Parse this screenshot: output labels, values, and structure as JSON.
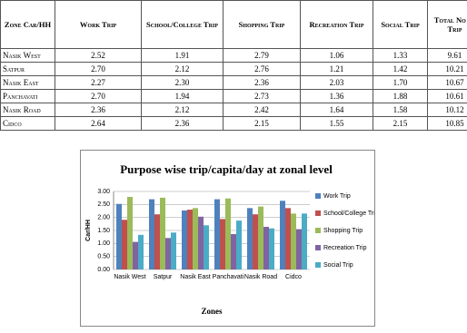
{
  "table": {
    "header": [
      "Zone Car/HH",
      "Work Trip",
      "School/College Trip",
      "Shopping Trip",
      "Recreation Trip",
      "Social Trip",
      "Total No of Trip"
    ],
    "rows": [
      [
        "Nasik West",
        "2.52",
        "1.91",
        "2.79",
        "1.06",
        "1.33",
        "9.61"
      ],
      [
        "Satpur",
        "2.70",
        "2.12",
        "2.76",
        "1.21",
        "1.42",
        "10.21"
      ],
      [
        "Nasik East",
        "2.27",
        "2.30",
        "2.36",
        "2.03",
        "1.70",
        "10.67"
      ],
      [
        "Panchavati",
        "2.70",
        "1.94",
        "2.73",
        "1.36",
        "1.88",
        "10.61"
      ],
      [
        "Nasik Road",
        "2.36",
        "2.12",
        "2.42",
        "1.64",
        "1.58",
        "10.12"
      ],
      [
        "Cidco",
        "2.64",
        "2.36",
        "2.15",
        "1.55",
        "2.15",
        "10.85"
      ]
    ]
  },
  "chart_data": {
    "type": "bar",
    "title": "Purpose wise trip/capita/day at zonal level",
    "x_label": "Zones",
    "y_label": "Car/HH",
    "categories": [
      "Nasik West",
      "Satpur",
      "Nasik East",
      "Panchavati",
      "Nasik Road",
      "Cidco"
    ],
    "series": [
      {
        "name": "Work Trip",
        "color": "#4f81bd",
        "values": [
          2.52,
          2.7,
          2.27,
          2.7,
          2.36,
          2.64
        ]
      },
      {
        "name": "School/College Trip",
        "color": "#c0504d",
        "values": [
          1.91,
          2.12,
          2.3,
          1.94,
          2.12,
          2.36
        ]
      },
      {
        "name": "Shopping Trip",
        "color": "#9bbb59",
        "values": [
          2.79,
          2.76,
          2.36,
          2.73,
          2.42,
          2.15
        ]
      },
      {
        "name": "Recreation Trip",
        "color": "#8064a2",
        "values": [
          1.06,
          1.21,
          2.03,
          1.36,
          1.64,
          1.55
        ]
      },
      {
        "name": "Social Trip",
        "color": "#4bacc6",
        "values": [
          1.33,
          1.42,
          1.7,
          1.88,
          1.58,
          2.15
        ]
      }
    ],
    "ylim": [
      0,
      3
    ],
    "yticks": [
      {
        "value": 0,
        "label": "0.00"
      },
      {
        "value": 0.5,
        "label": "0.50"
      },
      {
        "value": 1,
        "label": "1.00"
      },
      {
        "value": 1.5,
        "label": "1.50"
      },
      {
        "value": 2,
        "label": "2.00"
      },
      {
        "value": 2.5,
        "label": "2.50"
      },
      {
        "value": 3,
        "label": "3.00"
      }
    ],
    "grid": true
  }
}
